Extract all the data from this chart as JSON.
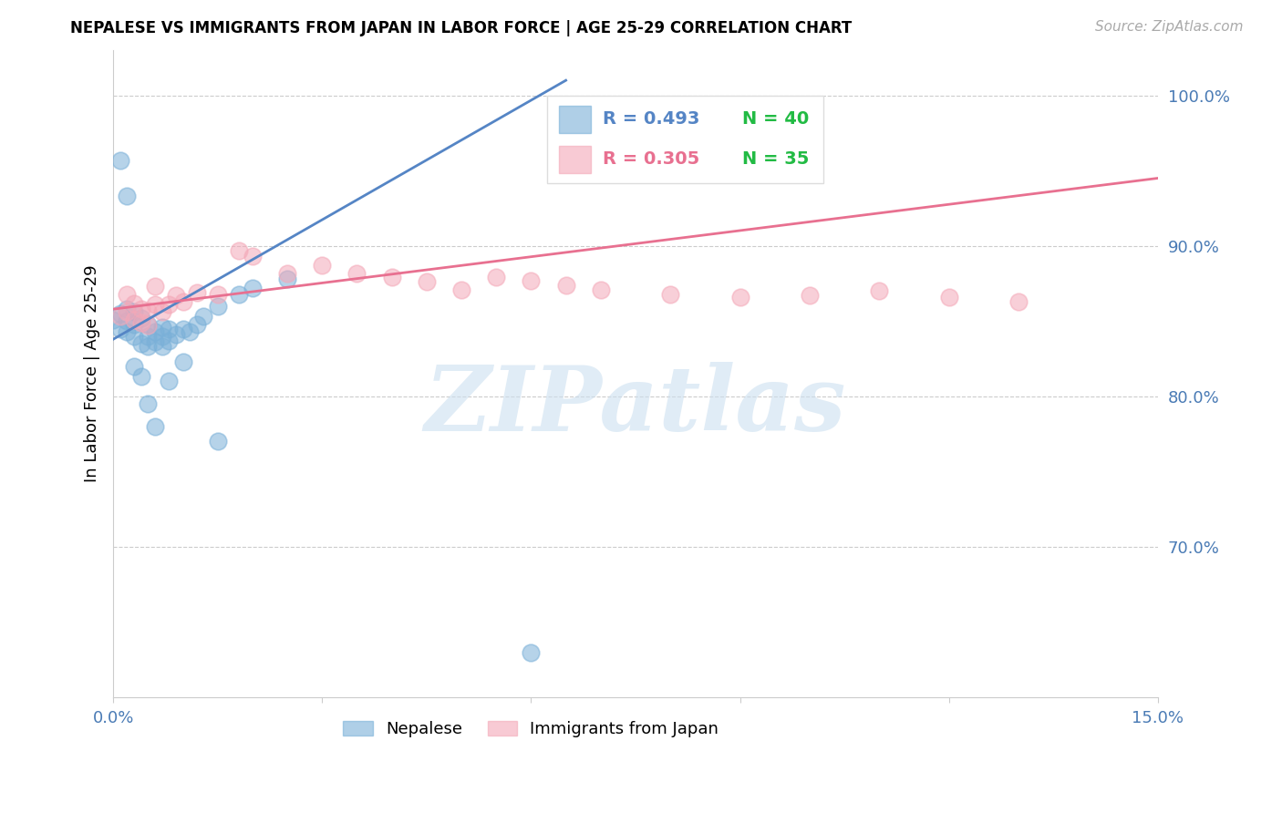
{
  "title": "NEPALESE VS IMMIGRANTS FROM JAPAN IN LABOR FORCE | AGE 25-29 CORRELATION CHART",
  "source": "Source: ZipAtlas.com",
  "ylabel": "In Labor Force | Age 25-29",
  "xlim": [
    0.0,
    0.15
  ],
  "ylim": [
    0.6,
    1.03
  ],
  "xticks": [
    0.0,
    0.03,
    0.06,
    0.09,
    0.12,
    0.15
  ],
  "xticklabels": [
    "0.0%",
    "",
    "",
    "",
    "",
    "15.0%"
  ],
  "yticks_right": [
    0.7,
    0.8,
    0.9,
    1.0
  ],
  "ytick_labels_right": [
    "70.0%",
    "80.0%",
    "90.0%",
    "100.0%"
  ],
  "blue_color": "#7ab0d8",
  "pink_color": "#f4a8b8",
  "blue_line_color": "#5585c5",
  "pink_line_color": "#e87090",
  "green_color": "#22bb44",
  "legend_R1": "R = 0.493",
  "legend_N1": "N = 40",
  "legend_R2": "R = 0.305",
  "legend_N2": "N = 35",
  "watermark": "ZIPatlas",
  "blue_x": [
    0.0,
    0.001,
    0.001,
    0.002,
    0.002,
    0.002,
    0.003,
    0.003,
    0.003,
    0.004,
    0.004,
    0.005,
    0.005,
    0.005,
    0.006,
    0.006,
    0.007,
    0.007,
    0.007,
    0.008,
    0.008,
    0.009,
    0.01,
    0.011,
    0.012,
    0.013,
    0.015,
    0.018,
    0.02,
    0.025,
    0.001,
    0.002,
    0.003,
    0.004,
    0.005,
    0.006,
    0.008,
    0.01,
    0.015,
    0.06
  ],
  "blue_y": [
    0.851,
    0.855,
    0.845,
    0.858,
    0.85,
    0.843,
    0.856,
    0.848,
    0.84,
    0.852,
    0.835,
    0.848,
    0.84,
    0.833,
    0.843,
    0.836,
    0.846,
    0.84,
    0.833,
    0.845,
    0.837,
    0.841,
    0.845,
    0.843,
    0.848,
    0.853,
    0.86,
    0.868,
    0.872,
    0.878,
    0.957,
    0.933,
    0.82,
    0.813,
    0.795,
    0.78,
    0.81,
    0.823,
    0.77,
    0.63
  ],
  "pink_x": [
    0.001,
    0.002,
    0.002,
    0.003,
    0.003,
    0.004,
    0.004,
    0.005,
    0.005,
    0.006,
    0.006,
    0.007,
    0.008,
    0.009,
    0.01,
    0.012,
    0.015,
    0.018,
    0.02,
    0.025,
    0.03,
    0.035,
    0.04,
    0.045,
    0.05,
    0.055,
    0.06,
    0.065,
    0.07,
    0.08,
    0.09,
    0.1,
    0.11,
    0.12,
    0.13
  ],
  "pink_y": [
    0.853,
    0.856,
    0.868,
    0.851,
    0.862,
    0.849,
    0.858,
    0.847,
    0.857,
    0.861,
    0.873,
    0.856,
    0.861,
    0.867,
    0.863,
    0.869,
    0.868,
    0.897,
    0.893,
    0.882,
    0.887,
    0.882,
    0.879,
    0.876,
    0.871,
    0.879,
    0.877,
    0.874,
    0.871,
    0.868,
    0.866,
    0.867,
    0.87,
    0.866,
    0.863
  ],
  "blue_line_x0": 0.0,
  "blue_line_y0": 0.838,
  "blue_line_x1": 0.065,
  "blue_line_y1": 1.01,
  "pink_line_x0": 0.0,
  "pink_line_y0": 0.858,
  "pink_line_x1": 0.15,
  "pink_line_y1": 0.945
}
